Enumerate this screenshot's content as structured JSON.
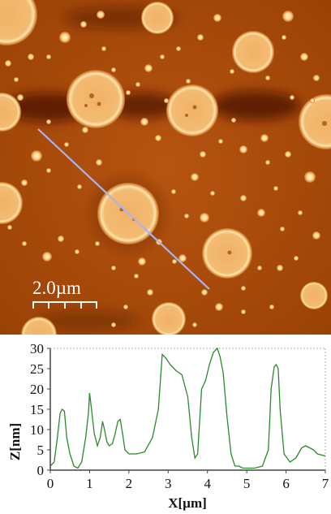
{
  "image": {
    "scale_bar_label": "2.0µm",
    "colors": {
      "background": "#a84a06",
      "dark_band": "#4a1402",
      "particle_rim": "#f4c078",
      "particle_core": "#ffe0a2",
      "line_profile": "#a9b4ee"
    }
  },
  "chart_data": {
    "type": "line",
    "xlabel": "X[µm]",
    "ylabel": "Z[nm]",
    "xlim": [
      0,
      7
    ],
    "ylim": [
      0,
      30
    ],
    "xticks": [
      "0",
      "1",
      "2",
      "3",
      "4",
      "5",
      "6",
      "7"
    ],
    "yticks": [
      "0",
      "5",
      "10",
      "15",
      "20",
      "25",
      "30"
    ],
    "color": "#2a8a2a",
    "series": [
      {
        "x": [
          0.0,
          0.1,
          0.18,
          0.25,
          0.3,
          0.36,
          0.42,
          0.5,
          0.6,
          0.7,
          0.8,
          0.9,
          0.97,
          1.0,
          1.05,
          1.12,
          1.2,
          1.27,
          1.33,
          1.38,
          1.44,
          1.5,
          1.58,
          1.65,
          1.72,
          1.78,
          1.84,
          1.9,
          2.0,
          2.2,
          2.4,
          2.6,
          2.75,
          2.85,
          2.95,
          3.05,
          3.2,
          3.35,
          3.5,
          3.6,
          3.68,
          3.75,
          3.85,
          3.95,
          4.05,
          4.15,
          4.25,
          4.32,
          4.4,
          4.5,
          4.6,
          4.7,
          4.8,
          4.9,
          5.0,
          5.2,
          5.4,
          5.55,
          5.62,
          5.7,
          5.75,
          5.8,
          5.85,
          5.95,
          6.1,
          6.25,
          6.4,
          6.5,
          6.6,
          6.7,
          6.8,
          7.0
        ],
        "y": [
          1,
          2,
          8,
          14,
          15,
          14.5,
          8,
          4,
          1,
          0.5,
          2,
          8,
          14,
          19,
          15,
          9,
          6,
          8,
          12,
          10,
          7,
          6,
          6.5,
          9,
          12,
          12.5,
          9,
          5,
          4,
          4,
          4.5,
          8,
          15,
          28.5,
          27.5,
          26,
          24.5,
          23.5,
          18,
          8,
          3,
          4,
          20,
          22,
          26,
          29,
          30,
          28,
          24,
          13,
          4,
          1,
          1,
          0.5,
          0.5,
          0.5,
          1,
          5,
          20,
          25.5,
          26,
          25,
          15,
          4,
          2,
          3,
          5.5,
          6,
          5.5,
          5,
          4,
          3.5
        ]
      }
    ]
  }
}
